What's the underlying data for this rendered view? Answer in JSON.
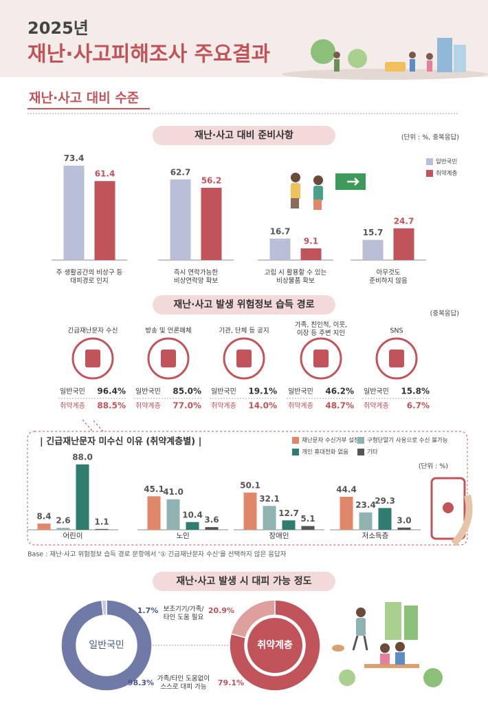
{
  "header": {
    "year": "2025년",
    "title": "재난·사고피해조사 주요결과"
  },
  "section_title": "재난·사고 대비 수준",
  "chart_data": [
    {
      "type": "bar",
      "title": "재난·사고 대비 준비사항",
      "unit": "(단위 : %, 중복응답)",
      "categories": [
        "주 생활공간의 비상구 등\n대피경로 인지",
        "즉시 연락가능한\n비상연락망 확보",
        "고립 시 활용할 수 있는\n비상물품 확보",
        "아무것도\n준비하지 않음"
      ],
      "series": [
        {
          "name": "일반국민",
          "color": "#b8bfd6",
          "values": [
            73.4,
            62.7,
            16.7,
            15.7
          ]
        },
        {
          "name": "취약계층",
          "color": "#c0545a",
          "values": [
            61.4,
            56.2,
            9.1,
            24.7
          ]
        }
      ]
    },
    {
      "type": "stat",
      "title": "재난·사고 발생 위험정보 습득 경로",
      "unit": "(중복응답)",
      "categories": [
        "긴급재난문자 수신",
        "방송 및 언론매체",
        "기관, 단체 등 공지",
        "가족, 친인척, 이웃,\n이장 등 주변 지인",
        "SNS"
      ],
      "series": [
        {
          "name": "일반국민",
          "color": "#333333",
          "values": [
            96.4,
            85.0,
            19.1,
            46.2,
            15.8
          ],
          "value_labels": [
            "96.4%",
            "85.0%",
            "19.1%",
            "46.2%",
            "15.8%"
          ]
        },
        {
          "name": "취약계층",
          "color": "#c0545a",
          "values": [
            88.5,
            77.0,
            14.0,
            48.7,
            6.7
          ],
          "value_labels": [
            "88.5%",
            "77.0%",
            "14.0%",
            "48.7%",
            "6.7%"
          ]
        }
      ]
    },
    {
      "type": "bar",
      "title": "| 긴급재난문자 미수신 이유 (취약계층별) |",
      "unit": "(단위 : %)",
      "categories": [
        "어린이",
        "노인",
        "장애인",
        "저소득층"
      ],
      "series": [
        {
          "name": "재난문자 수신거부 설정",
          "color": "#e0876a",
          "values": [
            8.4,
            45.1,
            50.1,
            44.4
          ],
          "value_labels": [
            "8.4",
            "45.1",
            "50.1",
            "44.4"
          ]
        },
        {
          "name": "구형단말기 사용으로 수신 불가능",
          "color": "#8fb3b0",
          "values": [
            2.6,
            41.0,
            32.1,
            23.4
          ],
          "value_labels": [
            "2.6",
            "41.0",
            "32.1",
            "23.4"
          ]
        },
        {
          "name": "개인 휴대전화 없음",
          "color": "#2e7d6e",
          "values": [
            88.0,
            10.4,
            12.7,
            29.3
          ],
          "value_labels": [
            "88.0",
            "10.4",
            "12.7",
            "29.3"
          ]
        },
        {
          "name": "기타",
          "color": "#555555",
          "values": [
            1.1,
            3.6,
            5.1,
            3.0
          ],
          "value_labels": [
            "1.1",
            "3.6",
            "5.1",
            "3.0"
          ]
        }
      ]
    },
    {
      "type": "pie",
      "title": "재난·사고 발생 시 대피 가능 정도",
      "categories": [
        "보조기기/가족/\n타인 도움 필요",
        "가족/타인 도움없이\n스스로 대피 가능"
      ],
      "series": [
        {
          "name": "일반국민",
          "colors": [
            "#c3c9de",
            "#6f7aa6"
          ],
          "values": [
            1.7,
            98.3
          ],
          "value_labels": [
            "1.7%",
            "98.3%"
          ]
        },
        {
          "name": "취약계층",
          "colors": [
            "#dea09c",
            "#c0545a"
          ],
          "values": [
            20.9,
            79.1
          ],
          "value_labels": [
            "20.9%",
            "79.1%"
          ]
        }
      ]
    }
  ],
  "base_note": "Base : 재난·사고 위험정보 습득 경로 문항에서 '① 긴급재난문자 수신'을 선택하지 않은 응답자"
}
